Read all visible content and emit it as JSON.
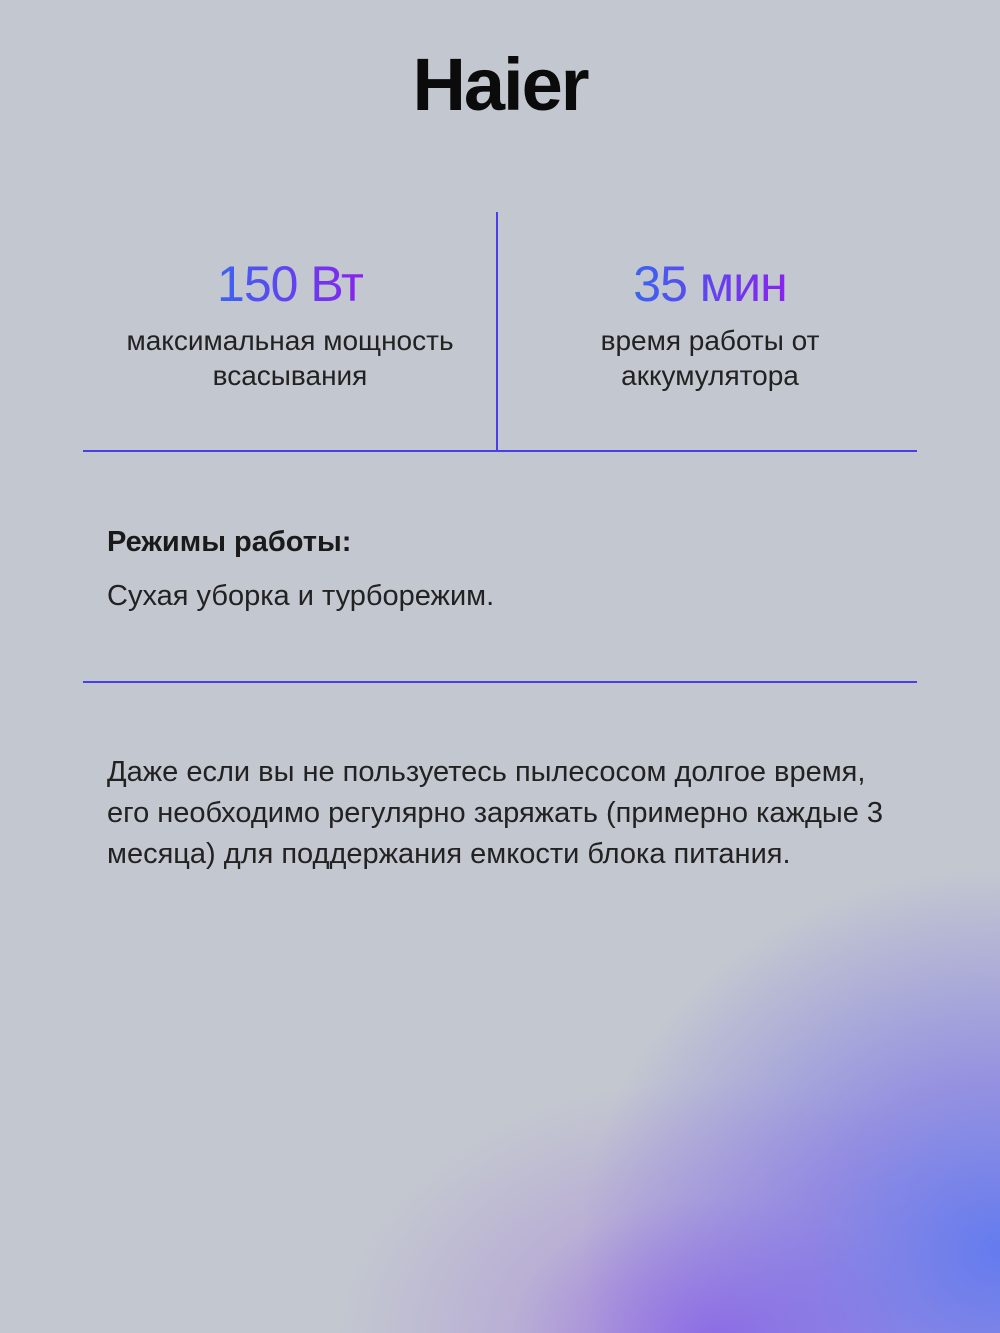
{
  "brand": {
    "logo": "Haier"
  },
  "stats": [
    {
      "value": "150 Вт",
      "description": "максимальная мощность всасывания"
    },
    {
      "value": "35 мин",
      "description": "время работы от аккумулятора"
    }
  ],
  "modes": {
    "heading": "Режимы работы:",
    "text": "Сухая уборка и турборежим."
  },
  "note": "Даже если вы не пользуетесь пылесосом долгое время, его необходимо регулярно заряжать (примерно каждые 3 месяца) для поддержания емкости блока питания.",
  "colors": {
    "accent_line": "#4a3ee8",
    "gradient_start": "#3b64f0",
    "gradient_end": "#8a22ee",
    "background": "#c3c7d0"
  }
}
